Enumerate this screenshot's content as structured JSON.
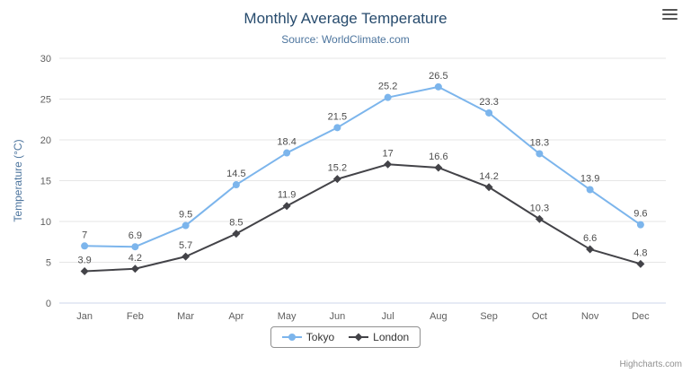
{
  "credits": {
    "label": "Highcharts.com"
  },
  "export_menu": {
    "icon": "hamburger-icon"
  },
  "chart_data": {
    "type": "line",
    "title": "Monthly Average Temperature",
    "subtitle": "Source: WorldClimate.com",
    "categories": [
      "Jan",
      "Feb",
      "Mar",
      "Apr",
      "May",
      "Jun",
      "Jul",
      "Aug",
      "Sep",
      "Oct",
      "Nov",
      "Dec"
    ],
    "series": [
      {
        "name": "Tokyo",
        "color": "#7cb5ec",
        "marker": "circle",
        "values": [
          7,
          6.9,
          9.5,
          14.5,
          18.4,
          21.5,
          25.2,
          26.5,
          23.3,
          18.3,
          13.9,
          9.6
        ]
      },
      {
        "name": "London",
        "color": "#434348",
        "marker": "diamond",
        "values": [
          3.9,
          4.2,
          5.7,
          8.5,
          11.9,
          15.2,
          17,
          16.6,
          14.2,
          10.3,
          6.6,
          4.8
        ]
      }
    ],
    "xlabel": "",
    "ylabel": "Temperature (°C)",
    "ylim": [
      0,
      30
    ],
    "ytick_interval": 5,
    "grid": true,
    "data_labels": true,
    "legend_position": "bottom",
    "colors": {
      "grid": "#e6e6e6",
      "axis_line": "#ccd6eb",
      "axis_label": "#606060",
      "title": "#274b6d",
      "subtitle": "#4d759e",
      "legend_border": "#909090",
      "credits": "#909090"
    }
  }
}
